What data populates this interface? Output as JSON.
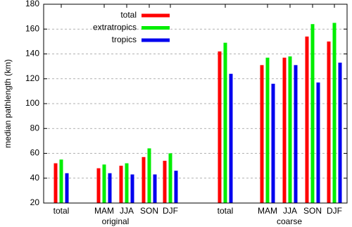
{
  "chart_data": {
    "type": "bar",
    "ylabel": "median pathlength (km)",
    "categories": [
      "total",
      "MAM",
      "JJA",
      "SON",
      "DJF",
      "total",
      "MAM",
      "JJA",
      "SON",
      "DJF"
    ],
    "group_labels": [
      "original",
      "coarse"
    ],
    "series": [
      {
        "name": "total",
        "color": "#ff0000",
        "values": [
          52,
          48,
          50,
          57,
          54,
          142,
          131,
          137,
          154,
          150
        ]
      },
      {
        "name": "extratropics",
        "color": "#00ee00",
        "values": [
          55,
          51,
          52,
          64,
          60,
          149,
          137,
          138,
          164,
          165
        ]
      },
      {
        "name": "tropics",
        "color": "#0000ee",
        "values": [
          44,
          44,
          43,
          43,
          46,
          124,
          116,
          131,
          117,
          133
        ]
      }
    ],
    "ylim": [
      20,
      180
    ],
    "yticks": [
      20,
      40,
      60,
      80,
      100,
      120,
      140,
      160,
      180
    ],
    "grid": true,
    "legend": "top-left"
  }
}
